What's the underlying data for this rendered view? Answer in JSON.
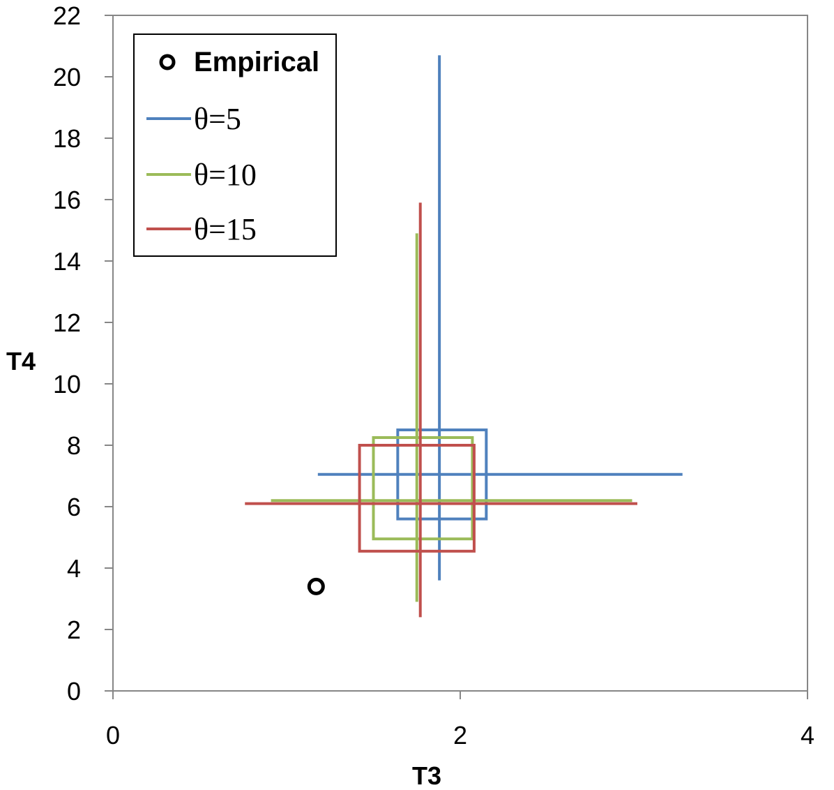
{
  "chart_data": {
    "type": "scatter",
    "title": "",
    "xlabel": "T3",
    "ylabel": "T4",
    "xlim": [
      0,
      4
    ],
    "ylim": [
      0,
      22
    ],
    "x_ticks": [
      "0",
      "2",
      "4"
    ],
    "y_ticks": [
      "0",
      "2",
      "4",
      "6",
      "8",
      "10",
      "12",
      "14",
      "16",
      "18",
      "20",
      "22"
    ],
    "grid": false,
    "legend_position": "top-left",
    "empirical": {
      "name": "Empirical",
      "x": 1.17,
      "y": 3.4
    },
    "series": [
      {
        "name": "θ=5",
        "color": "#4f81bd",
        "center": {
          "x": 1.88,
          "y": 7.05
        },
        "x_range": [
          1.18,
          3.28
        ],
        "y_range": [
          3.6,
          20.7
        ],
        "box": {
          "x": [
            1.64,
            2.15
          ],
          "y": [
            5.6,
            8.5
          ]
        }
      },
      {
        "name": "θ=10",
        "color": "#9bbb59",
        "center": {
          "x": 1.75,
          "y": 6.2
        },
        "x_range": [
          0.91,
          2.99
        ],
        "y_range": [
          2.9,
          14.9
        ],
        "box": {
          "x": [
            1.5,
            2.07
          ],
          "y": [
            4.95,
            8.25
          ]
        }
      },
      {
        "name": "θ=15",
        "color": "#c0504d",
        "center": {
          "x": 1.77,
          "y": 6.1
        },
        "x_range": [
          0.76,
          3.02
        ],
        "y_range": [
          2.4,
          15.9
        ],
        "box": {
          "x": [
            1.42,
            2.08
          ],
          "y": [
            4.55,
            8.0
          ]
        }
      }
    ]
  }
}
